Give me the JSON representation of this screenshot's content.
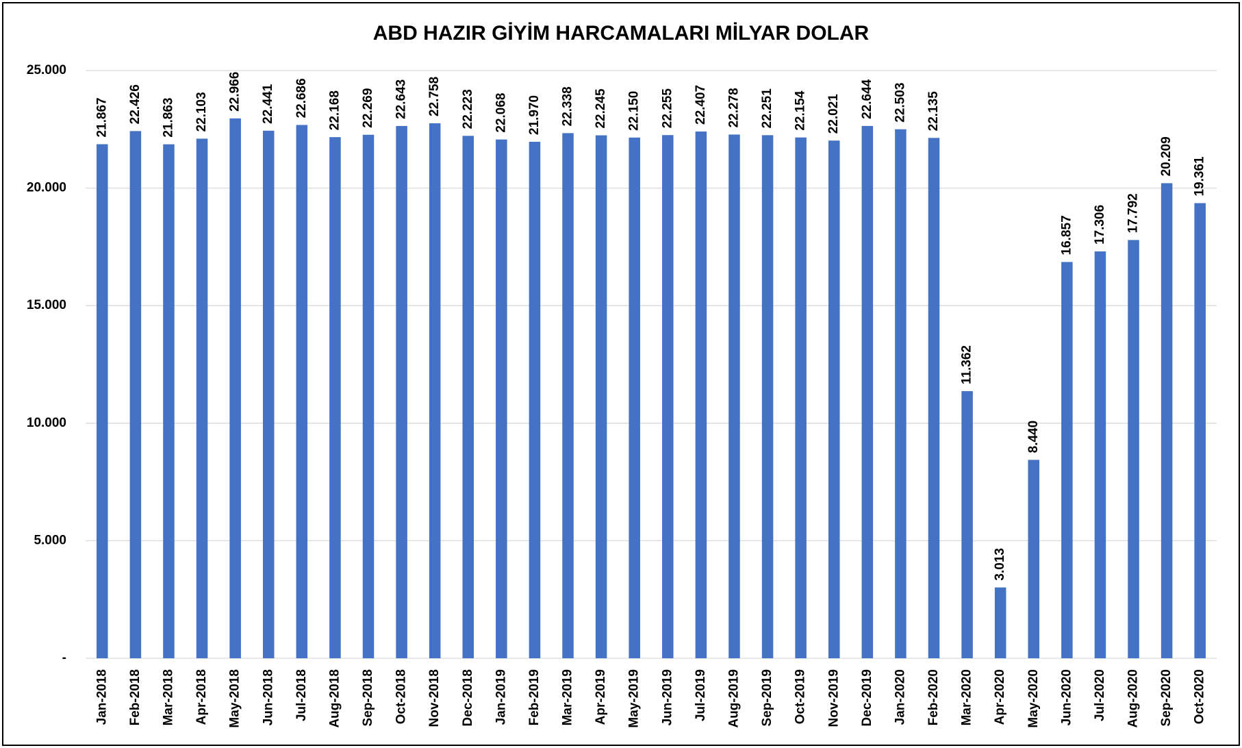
{
  "chart_data": {
    "type": "bar",
    "title": "ABD HAZIR GİYİM HARCAMALARI MİLYAR DOLAR",
    "categories": [
      "Jan-2018",
      "Feb-2018",
      "Mar-2018",
      "Apr-2018",
      "May-2018",
      "Jun-2018",
      "Jul-2018",
      "Aug-2018",
      "Sep-2018",
      "Oct-2018",
      "Nov-2018",
      "Dec-2018",
      "Jan-2019",
      "Feb-2019",
      "Mar-2019",
      "Apr-2019",
      "May-2019",
      "Jun-2019",
      "Jul-2019",
      "Aug-2019",
      "Sep-2019",
      "Oct-2019",
      "Nov-2019",
      "Dec-2019",
      "Jan-2020",
      "Feb-2020",
      "Mar-2020",
      "Apr-2020",
      "May-2020",
      "Jun-2020",
      "Jul-2020",
      "Aug-2020",
      "Sep-2020",
      "Oct-2020"
    ],
    "values": [
      21867,
      22426,
      21863,
      22103,
      22966,
      22441,
      22686,
      22168,
      22269,
      22643,
      22758,
      22223,
      22068,
      21970,
      22338,
      22245,
      22150,
      22255,
      22407,
      22278,
      22251,
      22154,
      22021,
      22644,
      22503,
      22135,
      11362,
      3013,
      8440,
      16857,
      17306,
      17792,
      20209,
      19361
    ],
    "value_labels": [
      "21.867",
      "22.426",
      "21.863",
      "22.103",
      "22.966",
      "22.441",
      "22.686",
      "22.168",
      "22.269",
      "22.643",
      "22.758",
      "22.223",
      "22.068",
      "21.970",
      "22.338",
      "22.245",
      "22.150",
      "22.255",
      "22.407",
      "22.278",
      "22.251",
      "22.154",
      "22.021",
      "22.644",
      "22.503",
      "22.135",
      "11.362",
      "3.013",
      "8.440",
      "16.857",
      "17.306",
      "17.792",
      "20.209",
      "19.361"
    ],
    "color": "#4472c4",
    "ylim": [
      0,
      25000
    ],
    "yticks": [
      {
        "value": 0,
        "label": "-"
      },
      {
        "value": 5000,
        "label": "5.000"
      },
      {
        "value": 10000,
        "label": "10.000"
      },
      {
        "value": 15000,
        "label": "15.000"
      },
      {
        "value": 20000,
        "label": "20.000"
      },
      {
        "value": 25000,
        "label": "25.000"
      }
    ],
    "grid": true
  }
}
